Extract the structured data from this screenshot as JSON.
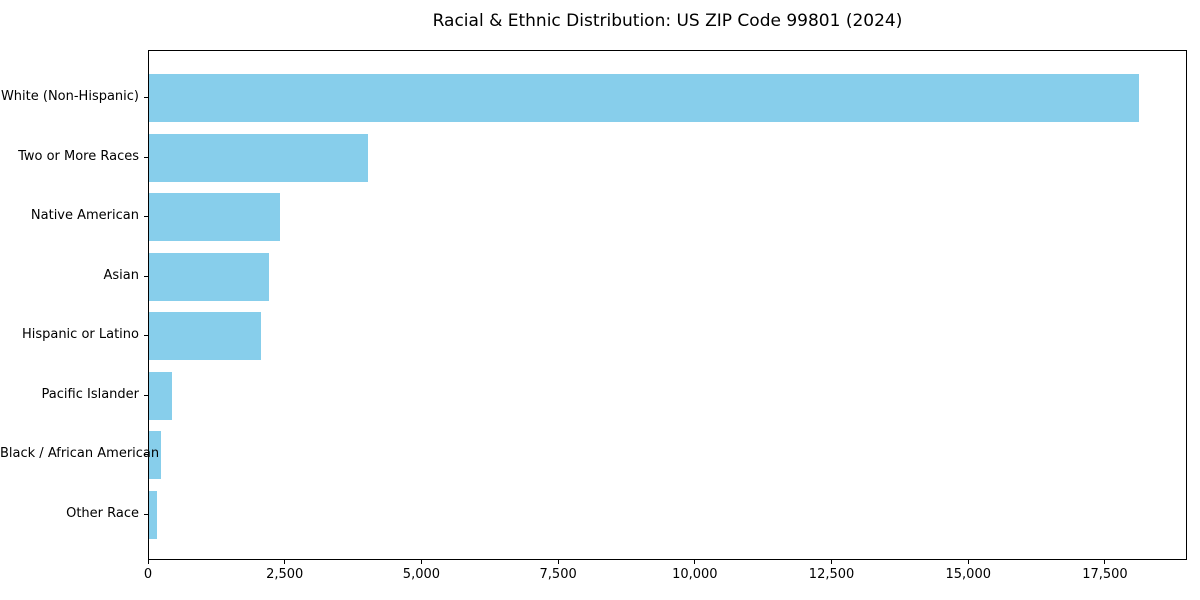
{
  "chart_data": {
    "type": "bar",
    "orientation": "horizontal",
    "title": "Racial & Ethnic Distribution: US ZIP Code 99801 (2024)",
    "categories": [
      "White (Non-Hispanic)",
      "Two or More Races",
      "Native American",
      "Asian",
      "Hispanic or Latino",
      "Pacific Islander",
      "Black / African American",
      "Other Race"
    ],
    "values": [
      18100,
      4000,
      2400,
      2200,
      2050,
      420,
      220,
      150
    ],
    "xlabel": "",
    "ylabel": "",
    "xlim": [
      0,
      19000
    ],
    "xticks": [
      0,
      2500,
      5000,
      7500,
      10000,
      12500,
      15000,
      17500
    ],
    "xtick_labels": [
      "0",
      "2,500",
      "5,000",
      "7,500",
      "10,000",
      "12,500",
      "15,000",
      "17,500"
    ],
    "bar_color": "#87CEEB",
    "frame_color": "#000000",
    "grid": false,
    "legend": null
  }
}
